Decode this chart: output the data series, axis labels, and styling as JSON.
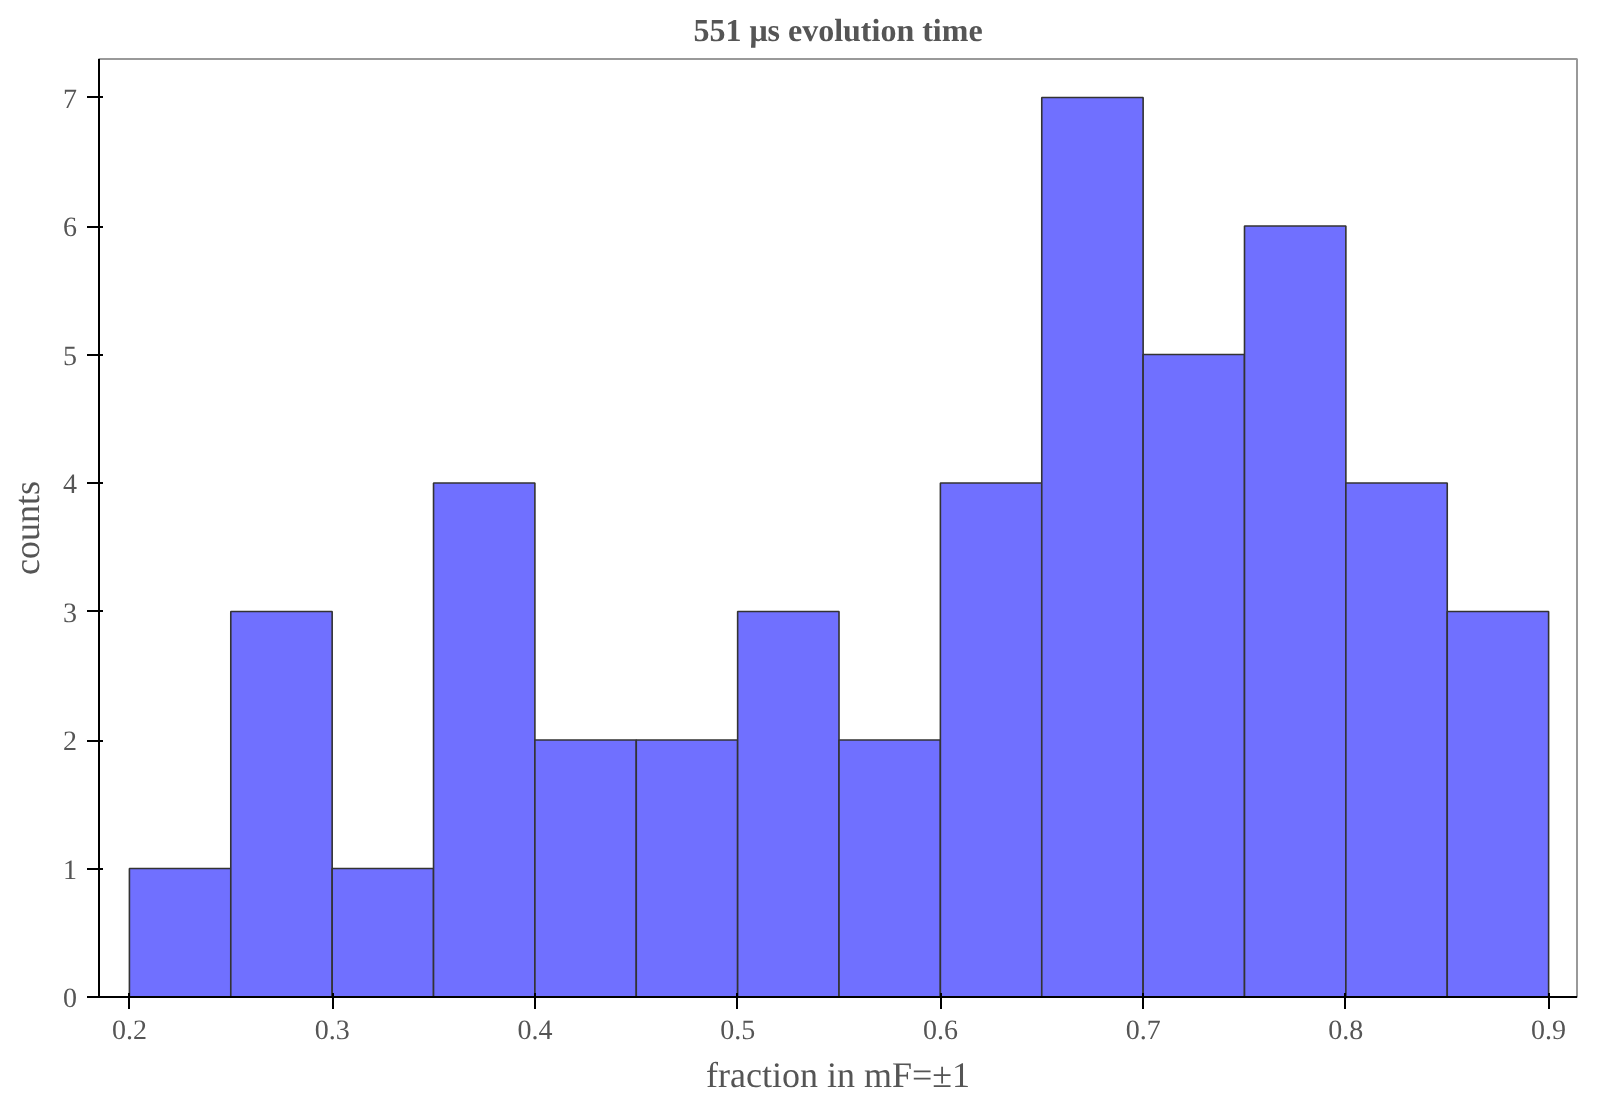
{
  "chart_data": {
    "type": "histogram",
    "title": "551 μs evolution time",
    "xlabel": "fraction in mF=±1",
    "ylabel": "counts",
    "bins": [
      0.2,
      0.25,
      0.3,
      0.35,
      0.4,
      0.45,
      0.5,
      0.55,
      0.6,
      0.65,
      0.7,
      0.75,
      0.8,
      0.85,
      0.9
    ],
    "values": [
      1,
      3,
      1,
      4,
      2,
      2,
      3,
      2,
      4,
      7,
      5,
      6,
      4,
      3
    ],
    "color": "#7070ff",
    "xlim": [
      0.185,
      0.914
    ],
    "ylim": [
      0,
      7.3
    ],
    "xticks": [
      0.2,
      0.3,
      0.4,
      0.5,
      0.6,
      0.7,
      0.8,
      0.9
    ],
    "yticks": [
      0,
      1,
      2,
      3,
      4,
      5,
      6,
      7
    ],
    "grid": false
  }
}
